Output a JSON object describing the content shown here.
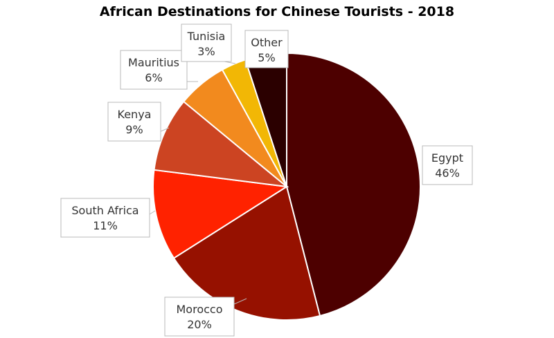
{
  "chart_data": {
    "type": "pie",
    "title": "African Destinations for Chinese Tourists - 2018",
    "slices": [
      {
        "label": "Egypt",
        "value": 46,
        "value_label": "46%",
        "color": "#4d0000"
      },
      {
        "label": "Morocco",
        "value": 20,
        "value_label": "20%",
        "color": "#961100"
      },
      {
        "label": "South Africa",
        "value": 11,
        "value_label": "11%",
        "color": "#ff2200"
      },
      {
        "label": "Kenya",
        "value": 9,
        "value_label": "9%",
        "color": "#cc4422"
      },
      {
        "label": "Mauritius",
        "value": 6,
        "value_label": "6%",
        "color": "#f28a1e"
      },
      {
        "label": "Tunisia",
        "value": 3,
        "value_label": "3%",
        "color": "#f2b705"
      },
      {
        "label": "Other",
        "value": 5,
        "value_label": "5%",
        "color": "#2b0000"
      }
    ],
    "legend": "none"
  }
}
